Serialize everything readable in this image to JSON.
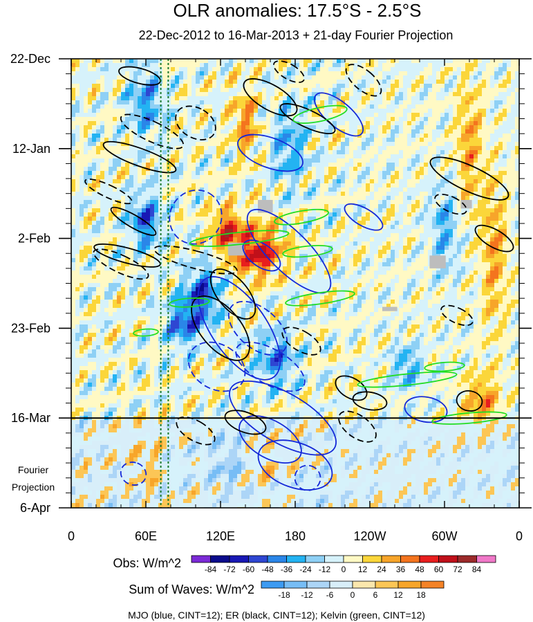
{
  "title": "OLR anomalies: 17.5°S - 2.5°S",
  "subtitle": "22-Dec-2012 to 16-Mar-2013 + 21-day Fourier Projection",
  "chart_data": {
    "type": "heatmap",
    "title": "OLR anomalies: 17.5°S - 2.5°S",
    "subtitle": "22-Dec-2012 to 16-Mar-2013 + 21-day Fourier Projection",
    "x_axis": {
      "range_lon": [
        0,
        360
      ],
      "ticks": [
        {
          "lon": 0,
          "label": "0"
        },
        {
          "lon": 60,
          "label": "60E"
        },
        {
          "lon": 120,
          "label": "120E"
        },
        {
          "lon": 180,
          "label": "180"
        },
        {
          "lon": 240,
          "label": "120W"
        },
        {
          "lon": 300,
          "label": "60W"
        },
        {
          "lon": 360,
          "label": "0"
        }
      ]
    },
    "y_axis": {
      "range_days": [
        0,
        105
      ],
      "direction": "time increases downward",
      "ticks": [
        {
          "day": 0,
          "label": "22-Dec"
        },
        {
          "day": 21,
          "label": "12-Jan"
        },
        {
          "day": 42,
          "label": "2-Feb"
        },
        {
          "day": 63,
          "label": "23-Feb"
        },
        {
          "day": 84,
          "label": "16-Mar"
        },
        {
          "day": 105,
          "label": "6-Apr"
        }
      ]
    },
    "observation_end_day": 84,
    "projection_label": [
      "Fourier",
      "Projection"
    ],
    "obs_colorbar": {
      "label": "Obs: W/m^2",
      "levels": [
        -84,
        -72,
        -60,
        -48,
        -36,
        -24,
        -12,
        0,
        12,
        24,
        36,
        48,
        60,
        72,
        84
      ],
      "colors": [
        "#7b2ad6",
        "#0b0b8c",
        "#1818b5",
        "#2e46d2",
        "#2a86e8",
        "#23b3f2",
        "#8ed0f5",
        "#d6f2fb",
        "#fff9c4",
        "#fbd63a",
        "#f7a52a",
        "#f4741e",
        "#e81e1e",
        "#c0101a",
        "#9c2a2a",
        "#f078c8"
      ]
    },
    "waves_colorbar": {
      "label": "Sum of Waves: W/m^2",
      "levels": [
        -18,
        -12,
        -6,
        0,
        6,
        12,
        18
      ],
      "colors": [
        "#3d9bf2",
        "#77bdf5",
        "#acd5f7",
        "#d8eef9",
        "#fbe7ad",
        "#fcc656",
        "#f7a52a",
        "#f48327"
      ]
    },
    "reference_lon_lines": [
      72,
      78
    ],
    "wave_contours": [
      {
        "name": "MJO",
        "color": "#1428d8"
      },
      {
        "name": "ER",
        "color": "#000000"
      },
      {
        "name": "Kelvin",
        "color": "#22dd22"
      }
    ],
    "footnote": "MJO (blue, CINT=12); ER (black, CINT=12); Kelvin (green, CINT=12)"
  },
  "colors": {
    "mjo": "#1428d8",
    "er": "#000000",
    "kelvin": "#22dd22",
    "reference_line": "#1b7a2d",
    "missing": "#bdbdbd",
    "background_obs": "#fff9c4",
    "background_projection": "#d6f2fb"
  }
}
